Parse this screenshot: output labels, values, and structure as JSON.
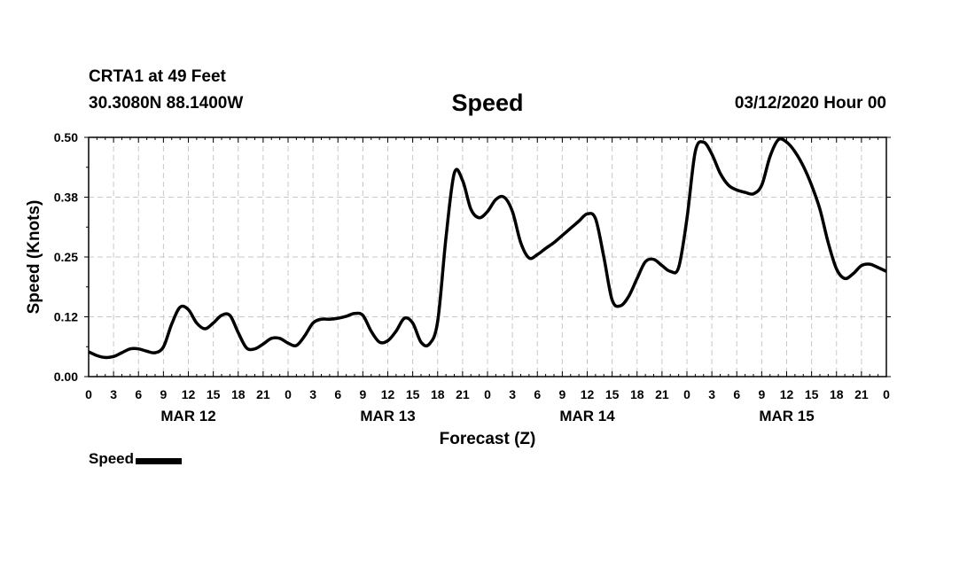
{
  "header": {
    "station": "CRTA1 at 49 Feet",
    "coords": "30.3080N 88.1400W",
    "title": "Speed",
    "datetime": "03/12/2020 Hour 00"
  },
  "chart_data": {
    "type": "line",
    "title": "Speed",
    "xlabel": "Forecast (Z)",
    "ylabel": "Speed (Knots)",
    "ylim": [
      0,
      0.5
    ],
    "xlim": [
      0,
      96
    ],
    "yticks": [
      "0.00",
      "0.12",
      "0.25",
      "0.38",
      "0.50"
    ],
    "ytick_values": [
      0,
      0.125,
      0.25,
      0.375,
      0.5
    ],
    "xtick_labels": [
      "0",
      "3",
      "6",
      "9",
      "12",
      "15",
      "18",
      "21",
      "0",
      "3",
      "6",
      "9",
      "12",
      "15",
      "18",
      "21",
      "0",
      "3",
      "6",
      "9",
      "12",
      "15",
      "18",
      "21",
      "0",
      "3",
      "6",
      "9",
      "12",
      "15",
      "18",
      "21",
      "0"
    ],
    "date_labels": [
      {
        "label": "MAR 12",
        "hour": 12
      },
      {
        "label": "MAR 13",
        "hour": 36
      },
      {
        "label": "MAR 14",
        "hour": 60
      },
      {
        "label": "MAR 15",
        "hour": 84
      }
    ],
    "grid": true,
    "legend": "bottom-left",
    "series": [
      {
        "name": "Speed",
        "color": "#000000",
        "x": [
          0,
          1,
          2,
          3,
          4,
          5,
          6,
          7,
          8,
          9,
          10,
          11,
          12,
          13,
          14,
          15,
          16,
          17,
          18,
          19,
          20,
          21,
          22,
          23,
          24,
          25,
          26,
          27,
          28,
          29,
          30,
          31,
          32,
          33,
          34,
          35,
          36,
          37,
          38,
          39,
          40,
          41,
          42,
          43,
          44,
          45,
          46,
          47,
          48,
          49,
          50,
          51,
          52,
          53,
          54,
          55,
          56,
          57,
          58,
          59,
          60,
          61,
          62,
          63,
          64,
          65,
          66,
          67,
          68,
          69,
          70,
          71,
          72,
          73,
          74,
          75,
          76,
          77,
          78,
          79,
          80,
          81,
          82,
          83,
          84,
          85,
          86,
          87,
          88,
          89,
          90,
          91,
          92,
          93,
          94,
          95,
          96
        ],
        "y": [
          0.052,
          0.044,
          0.04,
          0.042,
          0.05,
          0.058,
          0.058,
          0.053,
          0.05,
          0.062,
          0.11,
          0.145,
          0.14,
          0.112,
          0.1,
          0.112,
          0.128,
          0.128,
          0.092,
          0.06,
          0.058,
          0.068,
          0.08,
          0.08,
          0.07,
          0.065,
          0.085,
          0.112,
          0.12,
          0.12,
          0.122,
          0.126,
          0.132,
          0.128,
          0.095,
          0.072,
          0.075,
          0.095,
          0.122,
          0.112,
          0.072,
          0.068,
          0.115,
          0.29,
          0.425,
          0.41,
          0.35,
          0.332,
          0.345,
          0.37,
          0.375,
          0.345,
          0.28,
          0.248,
          0.255,
          0.268,
          0.28,
          0.295,
          0.31,
          0.325,
          0.34,
          0.33,
          0.25,
          0.16,
          0.148,
          0.168,
          0.205,
          0.24,
          0.245,
          0.232,
          0.22,
          0.228,
          0.33,
          0.47,
          0.49,
          0.465,
          0.425,
          0.4,
          0.39,
          0.385,
          0.382,
          0.4,
          0.46,
          0.495,
          0.49,
          0.47,
          0.44,
          0.4,
          0.35,
          0.28,
          0.225,
          0.205,
          0.215,
          0.232,
          0.235,
          0.228,
          0.22
        ]
      }
    ]
  }
}
